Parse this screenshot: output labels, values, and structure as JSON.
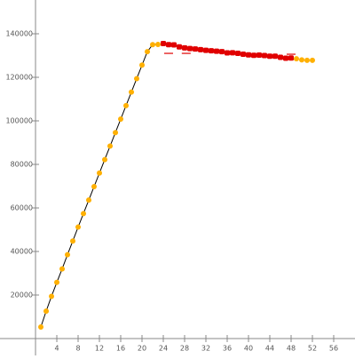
{
  "chart_data": {
    "type": "scatter",
    "xlim": [
      -6.67,
      60
    ],
    "ylim": [
      -7755,
      155510
    ],
    "xticks": [
      4,
      8,
      12,
      16,
      20,
      24,
      28,
      32,
      36,
      40,
      44,
      48,
      52,
      56
    ],
    "yticks": [
      20000,
      40000,
      60000,
      80000,
      100000,
      120000,
      140000
    ],
    "grid": false,
    "series": [
      {
        "color": "#ffb000",
        "marker": "circle",
        "line_color": "#000000",
        "x": [
          1,
          2,
          3,
          4,
          5,
          6,
          7,
          8,
          9,
          10,
          11,
          12,
          13,
          14,
          15,
          16,
          17,
          18,
          19,
          20,
          21,
          22,
          23
        ],
        "values": [
          5300,
          12600,
          19400,
          25800,
          32000,
          38500,
          44800,
          51200,
          57400,
          63600,
          69800,
          76000,
          82200,
          88400,
          94600,
          100800,
          107000,
          113200,
          119400,
          125600,
          131800,
          135000,
          135100
        ]
      },
      {
        "color": "#e00000",
        "marker": "square",
        "x": [
          24,
          25,
          26,
          27,
          28,
          29,
          30,
          31,
          32,
          33,
          34,
          35,
          36,
          37,
          38,
          39,
          40,
          41,
          42,
          43,
          44,
          45,
          46,
          47,
          48
        ],
        "values": [
          135500,
          135000,
          134900,
          134000,
          133500,
          133200,
          133000,
          132700,
          132400,
          132200,
          132000,
          131800,
          131200,
          131300,
          131000,
          130600,
          130300,
          130100,
          130200,
          130000,
          129700,
          129700,
          129200,
          128800,
          128900
        ]
      },
      {
        "color": "#ffb000",
        "marker": "circle",
        "x": [
          49,
          50,
          51,
          52
        ],
        "values": [
          128500,
          128000,
          127800,
          127800
        ]
      },
      {
        "color": "#e00000",
        "marker": "dash",
        "x": [
          25,
          28.3,
          44.5,
          48
        ],
        "values": [
          131000,
          131000,
          129800,
          130600
        ]
      }
    ]
  }
}
